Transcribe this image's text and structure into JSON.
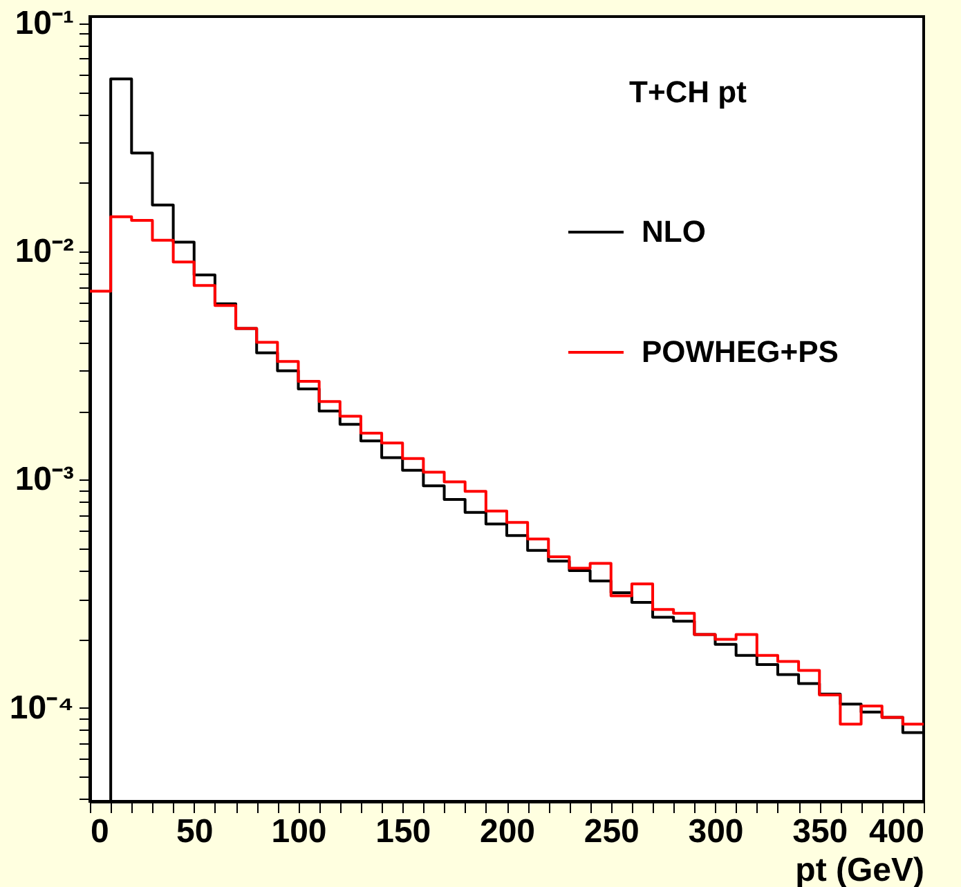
{
  "chart_data": {
    "type": "histogram",
    "title": "T+CH pt",
    "xlabel": "pt (GeV)",
    "bins": [
      0,
      10,
      20,
      30,
      40,
      50,
      60,
      70,
      80,
      90,
      100,
      110,
      120,
      130,
      140,
      150,
      160,
      170,
      180,
      190,
      200,
      210,
      220,
      230,
      240,
      250,
      260,
      270,
      280,
      290,
      300,
      310,
      320,
      330,
      340,
      350,
      360,
      370,
      380,
      390,
      400
    ],
    "series": [
      {
        "name": "NLO",
        "color": "#000000",
        "values": [
          null,
          0.057,
          0.027,
          0.016,
          0.011,
          0.0079,
          0.0059,
          0.0046,
          0.0036,
          0.003,
          0.0025,
          0.002,
          0.00175,
          0.00148,
          0.00125,
          0.0011,
          0.00094,
          0.00082,
          0.00072,
          0.00064,
          0.00057,
          0.00049,
          0.00044,
          0.0004,
          0.00036,
          0.00032,
          0.00029,
          0.00025,
          0.00024,
          0.00021,
          0.00019,
          0.00017,
          0.000155,
          0.00014,
          0.000128,
          0.000115,
          0.000104,
          9.6e-05,
          9.1e-05,
          7.8e-05
        ]
      },
      {
        "name": "POWHEG+PS",
        "color": "#ff0000",
        "values": [
          0.0067,
          0.0142,
          0.0137,
          0.0112,
          0.009,
          0.0071,
          0.0058,
          0.0046,
          0.004,
          0.0033,
          0.0027,
          0.0022,
          0.0019,
          0.0016,
          0.00145,
          0.00124,
          0.00108,
          0.00098,
          0.00089,
          0.00073,
          0.00065,
          0.00055,
          0.00046,
          0.00041,
          0.00043,
          0.00031,
          0.00035,
          0.00027,
          0.00026,
          0.00021,
          0.0002,
          0.00021,
          0.00017,
          0.00016,
          0.000146,
          0.000114,
          8.5e-05,
          0.000102,
          9.1e-05,
          8.5e-05
        ]
      }
    ],
    "log": "y",
    "xlim": [
      0,
      400
    ],
    "ylim": [
      3.9e-05,
      0.107
    ],
    "xticks": [
      0,
      {
        "value": 10,
        "label": null
      },
      {
        "value": 20,
        "label": null
      },
      {
        "value": 30,
        "label": null
      },
      {
        "value": 40,
        "label": null
      },
      50,
      {
        "value": 60,
        "label": null
      },
      {
        "value": 70,
        "label": null
      },
      {
        "value": 80,
        "label": null
      },
      {
        "value": 90,
        "label": null
      },
      100,
      {
        "value": 110,
        "label": null
      },
      {
        "value": 120,
        "label": null
      },
      {
        "value": 130,
        "label": null
      },
      {
        "value": 140,
        "label": null
      },
      150,
      {
        "value": 160,
        "label": null
      },
      {
        "value": 170,
        "label": null
      },
      {
        "value": 180,
        "label": null
      },
      {
        "value": 190,
        "label": null
      },
      200,
      {
        "value": 210,
        "label": null
      },
      {
        "value": 220,
        "label": null
      },
      {
        "value": 230,
        "label": null
      },
      {
        "value": 240,
        "label": null
      },
      250,
      {
        "value": 260,
        "label": null
      },
      {
        "value": 270,
        "label": null
      },
      {
        "value": 280,
        "label": null
      },
      {
        "value": 290,
        "label": null
      },
      300,
      {
        "value": 310,
        "label": null
      },
      {
        "value": 320,
        "label": null
      },
      {
        "value": 330,
        "label": null
      },
      {
        "value": 340,
        "label": null
      },
      350,
      {
        "value": 360,
        "label": null
      },
      {
        "value": 370,
        "label": null
      },
      {
        "value": 380,
        "label": null
      },
      {
        "value": 390,
        "label": null
      },
      400
    ],
    "yticks": [
      {
        "value": 4e-05,
        "label": null
      },
      {
        "value": 5e-05,
        "label": null
      },
      {
        "value": 6e-05,
        "label": null
      },
      {
        "value": 7e-05,
        "label": null
      },
      {
        "value": 8e-05,
        "label": null
      },
      {
        "value": 9e-05,
        "label": null
      },
      {
        "value": 0.0001,
        "label": "10⁻⁴"
      },
      {
        "value": 0.0002,
        "label": null
      },
      {
        "value": 0.0003,
        "label": null
      },
      {
        "value": 0.0004,
        "label": null
      },
      {
        "value": 0.0005,
        "label": null
      },
      {
        "value": 0.0006,
        "label": null
      },
      {
        "value": 0.0007,
        "label": null
      },
      {
        "value": 0.0008,
        "label": null
      },
      {
        "value": 0.0009,
        "label": null
      },
      {
        "value": 0.001,
        "label": "10⁻³"
      },
      {
        "value": 0.002,
        "label": null
      },
      {
        "value": 0.003,
        "label": null
      },
      {
        "value": 0.004,
        "label": null
      },
      {
        "value": 0.005,
        "label": null
      },
      {
        "value": 0.006,
        "label": null
      },
      {
        "value": 0.007,
        "label": null
      },
      {
        "value": 0.008,
        "label": null
      },
      {
        "value": 0.009,
        "label": null
      },
      {
        "value": 0.01,
        "label": "10⁻²"
      },
      {
        "value": 0.02,
        "label": null
      },
      {
        "value": 0.03,
        "label": null
      },
      {
        "value": 0.04,
        "label": null
      },
      {
        "value": 0.05,
        "label": null
      },
      {
        "value": 0.06,
        "label": null
      },
      {
        "value": 0.07,
        "label": null
      },
      {
        "value": 0.08,
        "label": null
      },
      {
        "value": 0.09,
        "label": null
      },
      {
        "value": 0.1,
        "label": "10⁻¹"
      }
    ],
    "grid": false,
    "legend": "top right",
    "line_style": "solid",
    "marker": "none"
  }
}
